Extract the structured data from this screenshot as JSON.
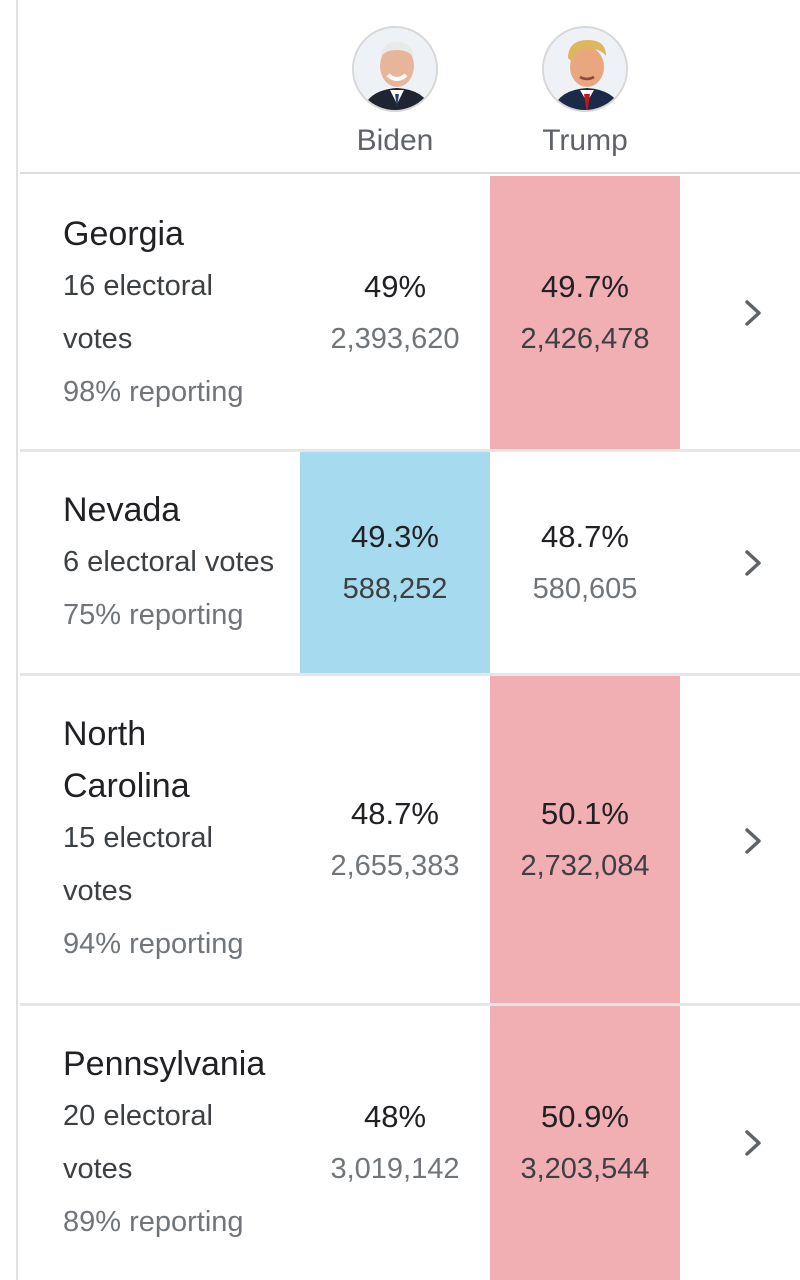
{
  "candidates": [
    {
      "name": "Biden",
      "avatar_icon": "biden-portrait-icon"
    },
    {
      "name": "Trump",
      "avatar_icon": "trump-portrait-icon"
    }
  ],
  "colors": {
    "red_win": "#f1afb3",
    "blue_win": "#a6dbef"
  },
  "rows": [
    {
      "state": "Georgia",
      "ev_line1": "16 electoral",
      "ev_line2": "votes",
      "reporting": "98% reporting",
      "biden_pct": "49%",
      "biden_votes": "2,393,620",
      "trump_pct": "49.7%",
      "trump_votes": "2,426,478",
      "leader": "trump"
    },
    {
      "state": "Nevada",
      "ev_line1": "6 electoral votes",
      "reporting": "75% reporting",
      "biden_pct": "49.3%",
      "biden_votes": "588,252",
      "trump_pct": "48.7%",
      "trump_votes": "580,605",
      "leader": "biden"
    },
    {
      "state_line1": "North",
      "state_line2": "Carolina",
      "ev_line1": "15 electoral",
      "ev_line2": "votes",
      "reporting": "94% reporting",
      "biden_pct": "48.7%",
      "biden_votes": "2,655,383",
      "trump_pct": "50.1%",
      "trump_votes": "2,732,084",
      "leader": "trump"
    },
    {
      "state": "Pennsylvania",
      "ev_line1": "20 electoral",
      "ev_line2": "votes",
      "reporting": "89% reporting",
      "biden_pct": "48%",
      "biden_votes": "3,019,142",
      "trump_pct": "50.9%",
      "trump_votes": "3,203,544",
      "leader": "trump"
    }
  ]
}
